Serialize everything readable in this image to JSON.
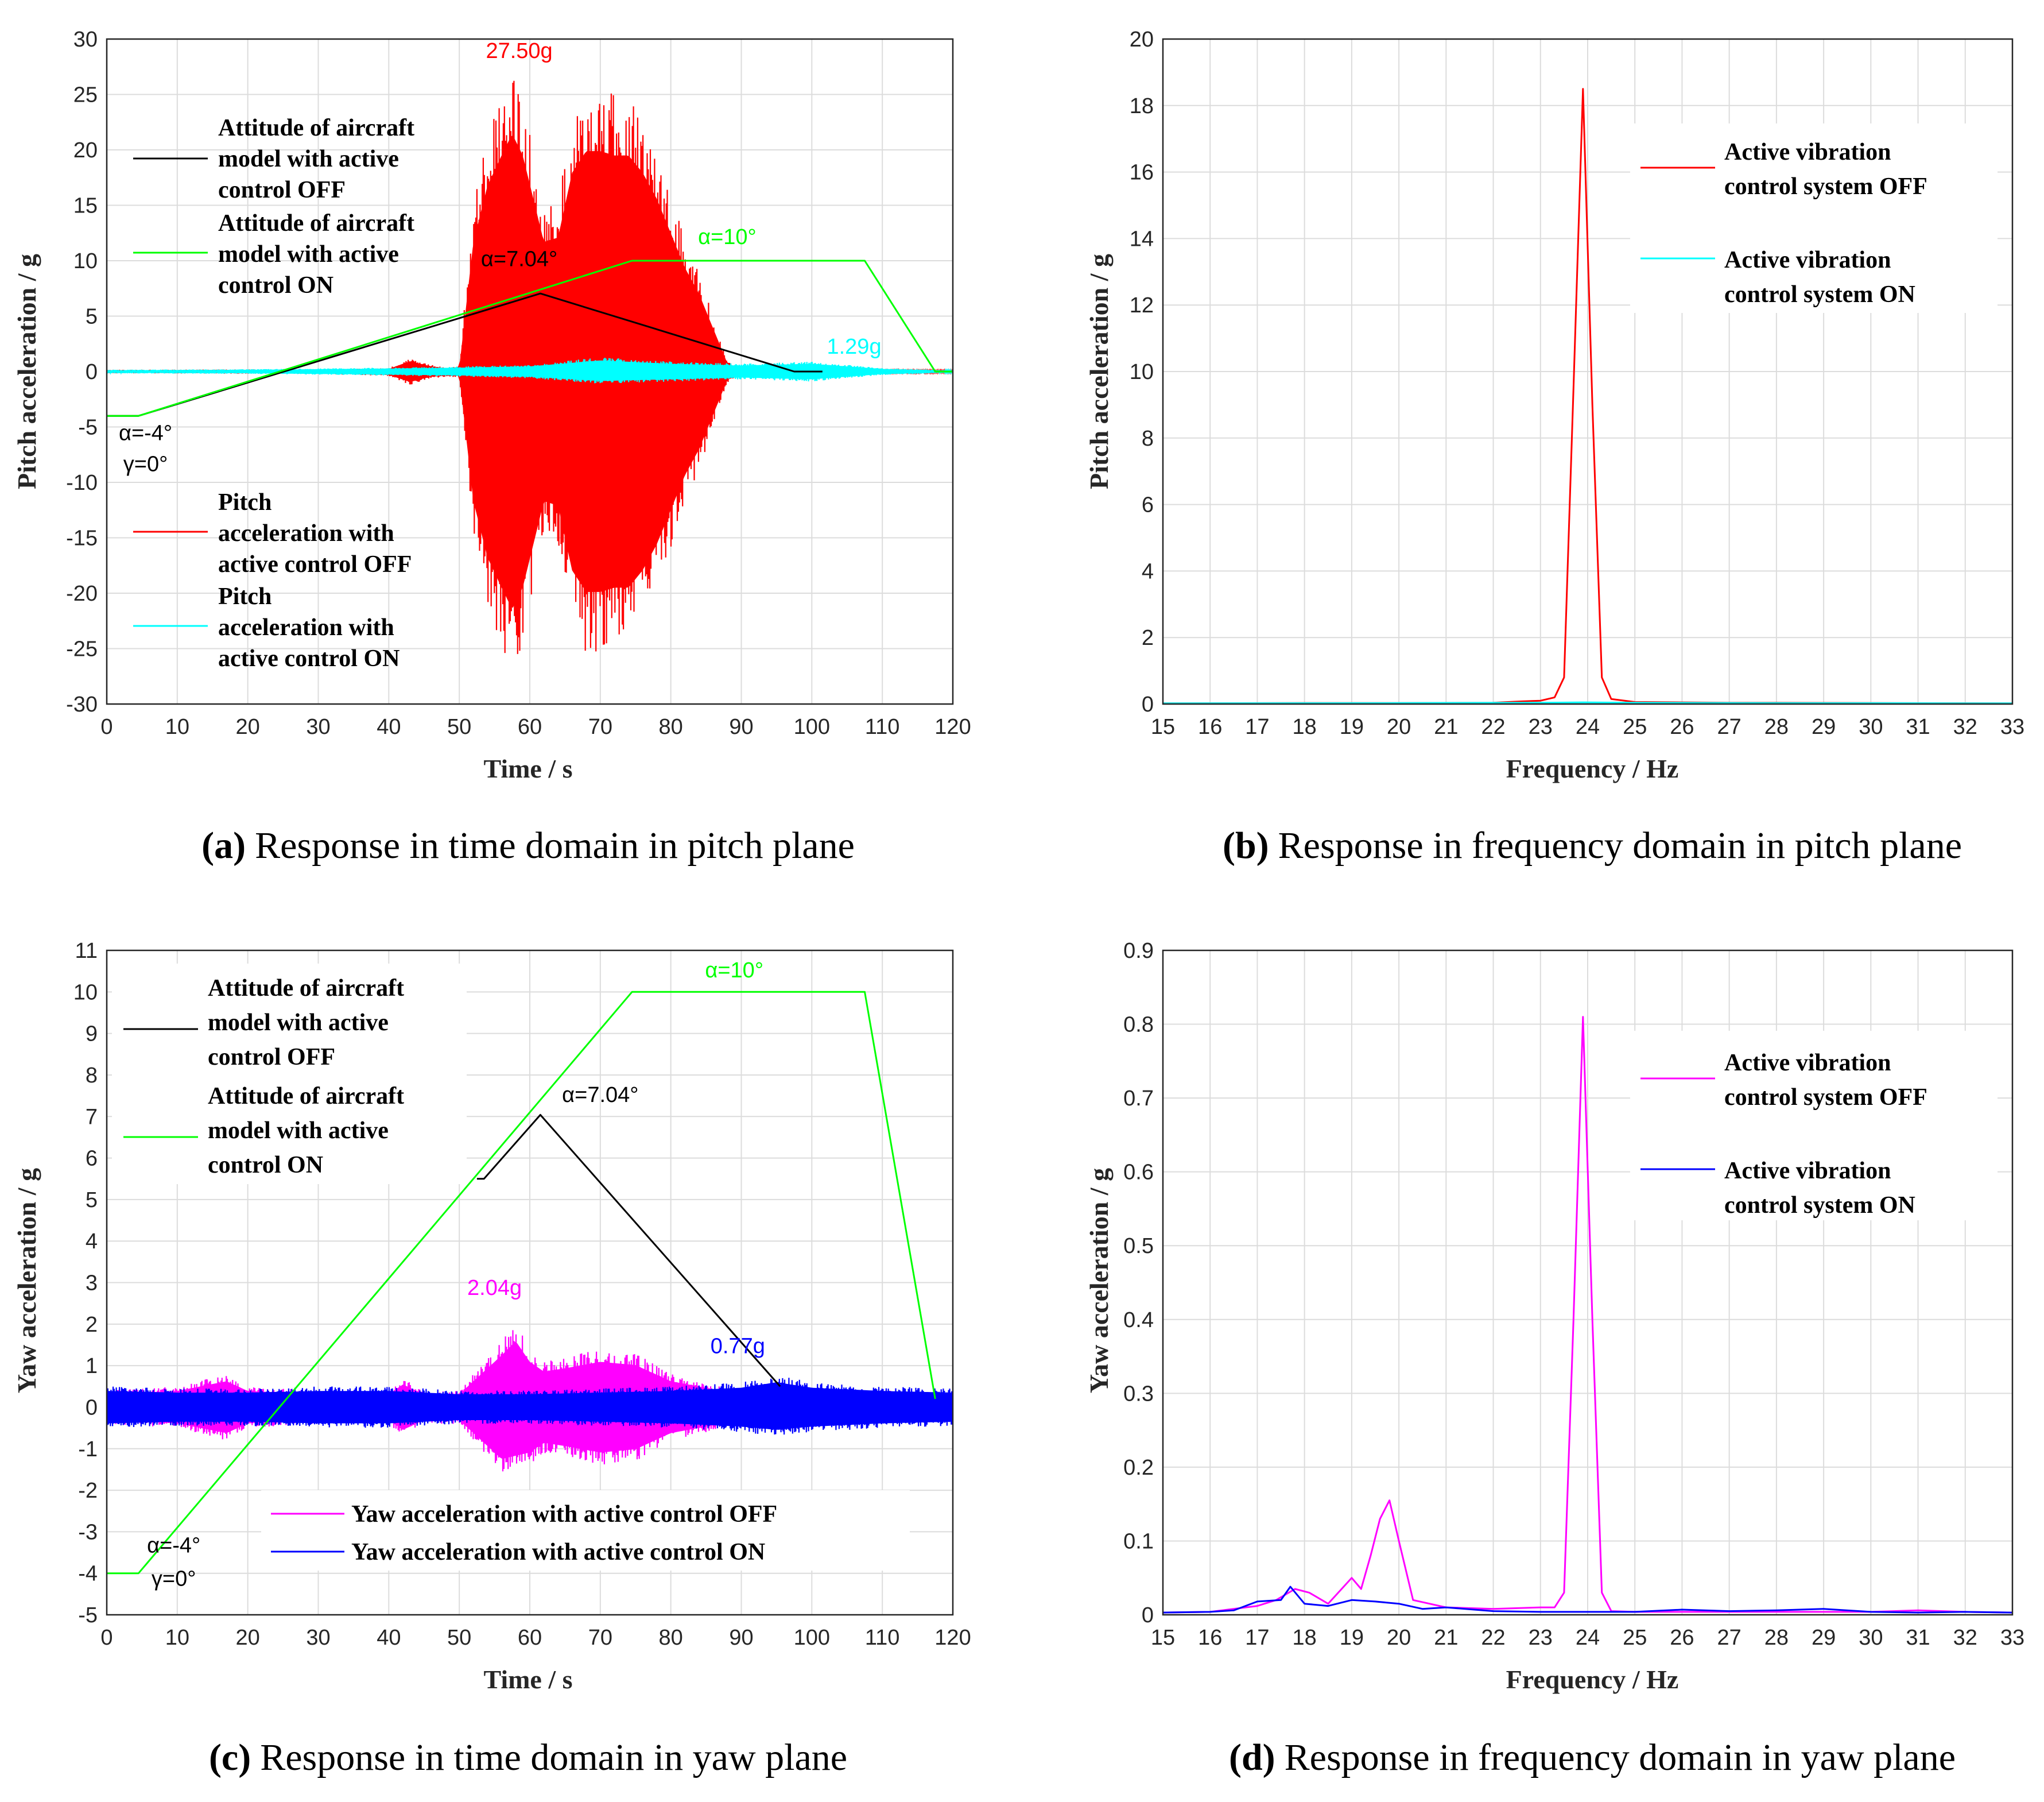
{
  "colors": {
    "red": "#ff0000",
    "cyan": "#00ffff",
    "green": "#00ff00",
    "black": "#000000",
    "magenta": "#ff00ff",
    "blue": "#0000ff"
  },
  "chart_data": [
    {
      "id": "a",
      "type": "line",
      "caption_label": "(a)",
      "caption_text": "Response in time domain in pitch plane",
      "xlabel": "Time / s",
      "ylabel": "Pitch acceleration / g",
      "xlim": [
        0,
        120
      ],
      "ylim": [
        -30,
        30
      ],
      "xticks": [
        0,
        10,
        20,
        30,
        40,
        50,
        60,
        70,
        80,
        90,
        100,
        110,
        120
      ],
      "yticks": [
        -30,
        -25,
        -20,
        -15,
        -10,
        -5,
        0,
        5,
        10,
        15,
        20,
        25,
        30
      ],
      "grid": true,
      "series": [
        {
          "name": "Attitude of aircraft model with active control OFF",
          "kind": "line",
          "color": "#000000",
          "x": [
            0,
            4.5,
            61.5,
            97.5,
            101.5
          ],
          "y": [
            -4,
            -4,
            7.04,
            0,
            0
          ],
          "legend_lines": [
            "Attitude of aircraft",
            "model with active",
            "control OFF"
          ]
        },
        {
          "name": "Attitude of aircraft model with active control ON",
          "kind": "line",
          "color": "#00ff00",
          "x": [
            0,
            4.5,
            74.5,
            107.5,
            117.5,
            120
          ],
          "y": [
            -4,
            -4,
            10,
            10,
            0,
            0
          ],
          "legend_lines": [
            "Attitude of aircraft",
            "model with active",
            "control ON"
          ]
        },
        {
          "name": "Pitch acceleration with active control OFF",
          "kind": "envelope",
          "color": "#ff0000",
          "x": [
            0,
            30,
            40,
            43,
            46,
            48,
            50,
            52,
            54,
            56,
            57.5,
            59,
            60.5,
            62,
            64,
            66,
            68,
            70,
            72,
            74,
            76,
            78,
            80,
            82,
            84,
            86,
            88,
            90,
            95,
            100,
            120
          ],
          "upper": [
            0.15,
            0.2,
            0.3,
            1.2,
            0.6,
            0.4,
            0.5,
            15,
            21.5,
            25,
            27.5,
            25,
            20,
            15,
            15.5,
            23,
            25.5,
            25.5,
            25,
            25,
            23,
            20,
            16,
            12,
            9,
            5,
            1,
            0.2,
            0.15,
            0.1,
            0.1
          ],
          "lower": [
            -0.15,
            -0.2,
            -0.4,
            -1.2,
            -0.6,
            -0.5,
            -0.5,
            -15,
            -21.5,
            -25,
            -27.5,
            -25,
            -20,
            -15,
            -15.5,
            -23,
            -25.5,
            -25.5,
            -25,
            -25,
            -23,
            -20,
            -16,
            -12,
            -9,
            -5,
            -1,
            -0.2,
            -0.15,
            -0.1,
            -0.1
          ]
        },
        {
          "name": "Pitch acceleration with active control ON",
          "kind": "envelope",
          "color": "#00ffff",
          "x": [
            0,
            20,
            40,
            50,
            60,
            70,
            80,
            90,
            95,
            100,
            110,
            120
          ],
          "upper": [
            0.15,
            0.2,
            0.35,
            0.45,
            0.6,
            1.29,
            0.9,
            0.7,
            0.8,
            0.9,
            0.3,
            0.1
          ],
          "lower": [
            -0.15,
            -0.2,
            -0.35,
            -0.45,
            -0.6,
            -1.1,
            -0.9,
            -0.7,
            -0.8,
            -0.9,
            -0.3,
            -0.1
          ],
          "legend_lines": [
            "Pitch",
            "acceleration with",
            "active control ON"
          ]
        }
      ],
      "annotations": [
        {
          "text": "27.50g",
          "x": 58.5,
          "y": 28.3,
          "color": "#ff0000"
        },
        {
          "text": "α=7.04°",
          "x": 58.5,
          "y": 9.5,
          "color": "#000000"
        },
        {
          "text": "α=10°",
          "x": 88,
          "y": 11.5,
          "color": "#00ff00"
        },
        {
          "text": "1.29g",
          "x": 106,
          "y": 1.6,
          "color": "#00ffff"
        },
        {
          "text": "α=-4°",
          "x": 5.5,
          "y": -6.2,
          "color": "#000000"
        },
        {
          "text": "γ=0°",
          "x": 5.5,
          "y": -9.0,
          "color": "#000000"
        }
      ],
      "legend_texts": [
        "Pitch",
        "acceleration with",
        "active control OFF"
      ]
    },
    {
      "id": "b",
      "type": "line",
      "caption_label": "(b)",
      "caption_text": "Response in frequency domain in pitch plane",
      "xlabel": "Frequency / Hz",
      "ylabel": "Pitch acceleration / g",
      "xlim": [
        15,
        33
      ],
      "ylim": [
        0,
        20
      ],
      "xticks": [
        15,
        16,
        17,
        18,
        19,
        20,
        21,
        22,
        23,
        24,
        25,
        26,
        27,
        28,
        29,
        30,
        31,
        32,
        33
      ],
      "yticks": [
        0,
        2,
        4,
        6,
        8,
        10,
        12,
        14,
        16,
        18,
        20
      ],
      "grid": true,
      "series": [
        {
          "name": "Active vibration control system OFF",
          "kind": "line",
          "color": "#ff0000",
          "legend_lines": [
            "Active vibration",
            "control system OFF"
          ],
          "x": [
            15,
            18,
            20,
            22,
            22.6,
            23,
            23.3,
            23.5,
            23.7,
            23.9,
            24.1,
            24.3,
            24.5,
            25,
            26,
            27,
            28,
            30,
            33
          ],
          "y": [
            0.02,
            0.03,
            0.03,
            0.04,
            0.08,
            0.1,
            0.2,
            0.8,
            9.5,
            18.5,
            9.0,
            0.8,
            0.15,
            0.06,
            0.05,
            0.04,
            0.04,
            0.03,
            0.02
          ]
        },
        {
          "name": "Active vibration control system ON",
          "kind": "line",
          "color": "#00ffff",
          "legend_lines": [
            "Active vibration",
            "control system ON"
          ],
          "x": [
            15,
            20,
            23,
            23.9,
            25,
            28,
            33
          ],
          "y": [
            0.02,
            0.03,
            0.04,
            0.05,
            0.04,
            0.03,
            0.02
          ]
        }
      ]
    },
    {
      "id": "c",
      "type": "line",
      "caption_label": "(c)",
      "caption_text": "Response in time domain in yaw plane",
      "xlabel": "Time / s",
      "ylabel": "Yaw acceleration / g",
      "xlim": [
        0,
        120
      ],
      "ylim": [
        -5,
        11
      ],
      "xticks": [
        0,
        10,
        20,
        30,
        40,
        50,
        60,
        70,
        80,
        90,
        100,
        110,
        120
      ],
      "yticks": [
        -5,
        -4,
        -3,
        -2,
        -1,
        0,
        1,
        2,
        3,
        4,
        5,
        6,
        7,
        8,
        9,
        10,
        11
      ],
      "grid": true,
      "series": [
        {
          "name": "Attitude of aircraft model with active control OFF",
          "kind": "line",
          "color": "#000000",
          "x": [
            52.5,
            53.5,
            61.5,
            95.5
          ],
          "y": [
            5.5,
            5.5,
            7.04,
            0.5
          ],
          "legend_lines": [
            "Attitude of aircraft",
            "model with active",
            "control OFF"
          ]
        },
        {
          "name": "Attitude of aircraft model with active control ON",
          "kind": "line",
          "color": "#00ff00",
          "x": [
            0,
            4.5,
            74.5,
            107.5,
            117.5
          ],
          "y": [
            -4,
            -4,
            10,
            10,
            0.2
          ],
          "legend_lines": [
            "Attitude of aircraft",
            "model with active",
            "control ON"
          ]
        },
        {
          "name": "Yaw acceleration with active control OFF",
          "kind": "envelope",
          "color": "#ff00ff",
          "x": [
            0,
            10,
            17,
            20,
            30,
            40,
            42,
            45,
            50,
            54,
            56,
            58,
            60,
            62,
            65,
            70,
            75,
            80,
            85,
            90,
            100,
            110,
            120
          ],
          "upper": [
            0.4,
            0.5,
            0.8,
            0.5,
            0.4,
            0.4,
            0.7,
            0.4,
            0.4,
            1.2,
            1.6,
            2.04,
            1.4,
            1.1,
            1.2,
            1.4,
            1.3,
            0.8,
            0.6,
            0.4,
            0.4,
            0.4,
            0.35
          ],
          "lower": [
            -0.4,
            -0.5,
            -0.8,
            -0.5,
            -0.4,
            -0.4,
            -0.7,
            -0.4,
            -0.4,
            -1.2,
            -1.6,
            -1.5,
            -1.4,
            -1.1,
            -1.2,
            -1.4,
            -1.3,
            -0.8,
            -0.6,
            -0.4,
            -0.4,
            -0.4,
            -0.35
          ]
        },
        {
          "name": "Yaw acceleration with active control ON",
          "kind": "envelope",
          "color": "#0000ff",
          "x": [
            0,
            10,
            20,
            30,
            40,
            50,
            60,
            70,
            80,
            90,
            95,
            100,
            110,
            120
          ],
          "upper": [
            0.5,
            0.45,
            0.45,
            0.5,
            0.5,
            0.4,
            0.4,
            0.45,
            0.5,
            0.6,
            0.77,
            0.6,
            0.5,
            0.45
          ],
          "lower": [
            -0.5,
            -0.45,
            -0.45,
            -0.5,
            -0.5,
            -0.4,
            -0.4,
            -0.45,
            -0.5,
            -0.6,
            -0.7,
            -0.6,
            -0.5,
            -0.45
          ]
        }
      ],
      "annotations": [
        {
          "text": "α=10°",
          "x": 89,
          "y": 10.35,
          "color": "#00ff00"
        },
        {
          "text": "α=7.04°",
          "x": 70,
          "y": 7.35,
          "color": "#000000"
        },
        {
          "text": "2.04g",
          "x": 55,
          "y": 2.7,
          "color": "#ff00ff"
        },
        {
          "text": "0.77g",
          "x": 89.5,
          "y": 1.3,
          "color": "#0000ff"
        },
        {
          "text": "α=-4°",
          "x": 9.5,
          "y": -3.5,
          "color": "#000000"
        },
        {
          "text": "γ=0°",
          "x": 9.5,
          "y": -4.3,
          "color": "#000000"
        }
      ],
      "legend_texts": [
        "Yaw acceleration with active control OFF",
        "Yaw acceleration with active control ON"
      ]
    },
    {
      "id": "d",
      "type": "line",
      "caption_label": "(d)",
      "caption_text": "Response in frequency domain in yaw plane",
      "xlabel": "Frequency / Hz",
      "ylabel": "Yaw acceleration / g",
      "xlim": [
        15,
        33
      ],
      "ylim": [
        0,
        0.9
      ],
      "xticks": [
        15,
        16,
        17,
        18,
        19,
        20,
        21,
        22,
        23,
        24,
        25,
        26,
        27,
        28,
        29,
        30,
        31,
        32,
        33
      ],
      "yticks": [
        0,
        0.1,
        0.2,
        0.3,
        0.4,
        0.5,
        0.6,
        0.7,
        0.8,
        0.9
      ],
      "grid": true,
      "series": [
        {
          "name": "Active vibration control system OFF",
          "kind": "line",
          "color": "#ff00ff",
          "legend_lines": [
            "Active vibration",
            "control system OFF"
          ],
          "x": [
            15,
            16,
            16.5,
            17,
            17.4,
            17.8,
            18.1,
            18.5,
            19,
            19.2,
            19.4,
            19.6,
            19.8,
            20,
            20.3,
            21,
            22,
            23,
            23.3,
            23.5,
            23.7,
            23.9,
            24.1,
            24.3,
            24.5,
            25,
            26,
            28,
            30,
            31,
            32,
            33
          ],
          "y": [
            0.003,
            0.004,
            0.008,
            0.012,
            0.02,
            0.035,
            0.03,
            0.015,
            0.05,
            0.035,
            0.08,
            0.13,
            0.155,
            0.1,
            0.02,
            0.01,
            0.008,
            0.01,
            0.01,
            0.03,
            0.4,
            0.81,
            0.4,
            0.03,
            0.005,
            0.004,
            0.004,
            0.004,
            0.004,
            0.006,
            0.004,
            0.003
          ]
        },
        {
          "name": "Active vibration control system ON",
          "kind": "line",
          "color": "#0000ff",
          "legend_lines": [
            "Active vibration",
            "control system ON"
          ],
          "x": [
            15,
            16,
            16.5,
            17,
            17.5,
            17.7,
            18,
            18.5,
            19,
            19.5,
            20,
            20.5,
            21,
            22,
            23,
            24,
            25,
            26,
            27,
            28,
            29,
            30,
            31,
            32,
            33
          ],
          "y": [
            0.003,
            0.004,
            0.006,
            0.018,
            0.02,
            0.038,
            0.015,
            0.012,
            0.02,
            0.018,
            0.015,
            0.008,
            0.01,
            0.005,
            0.004,
            0.004,
            0.004,
            0.007,
            0.005,
            0.006,
            0.008,
            0.004,
            0.003,
            0.004,
            0.003
          ]
        }
      ]
    }
  ]
}
